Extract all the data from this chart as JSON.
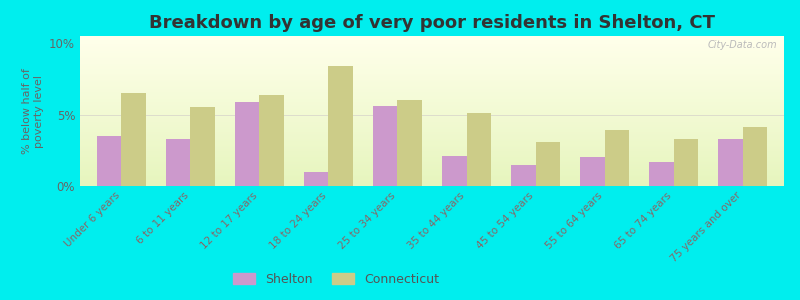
{
  "categories": [
    "Under 6 years",
    "6 to 11 years",
    "12 to 17 years",
    "18 to 24 years",
    "25 to 34 years",
    "35 to 44 years",
    "45 to 54 years",
    "55 to 64 years",
    "65 to 74 years",
    "75 years and over"
  ],
  "shelton_values": [
    3.5,
    3.3,
    5.9,
    1.0,
    5.6,
    2.1,
    1.5,
    2.0,
    1.7,
    3.3
  ],
  "connecticut_values": [
    6.5,
    5.5,
    6.4,
    8.4,
    6.0,
    5.1,
    3.1,
    3.9,
    3.3,
    4.1
  ],
  "shelton_color": "#cc99cc",
  "connecticut_color": "#cccc88",
  "background_color": "#00eeee",
  "title": "Breakdown by age of very poor residents in Shelton, CT",
  "ylabel": "% below half of\npoverty level",
  "ylim": [
    0,
    10.5
  ],
  "yticks": [
    0,
    5,
    10
  ],
  "ytick_labels": [
    "0%",
    "5%",
    "10%"
  ],
  "title_fontsize": 13,
  "label_fontsize": 8.5,
  "legend_shelton": "Shelton",
  "legend_connecticut": "Connecticut",
  "bar_width": 0.35,
  "watermark": "City-Data.com"
}
